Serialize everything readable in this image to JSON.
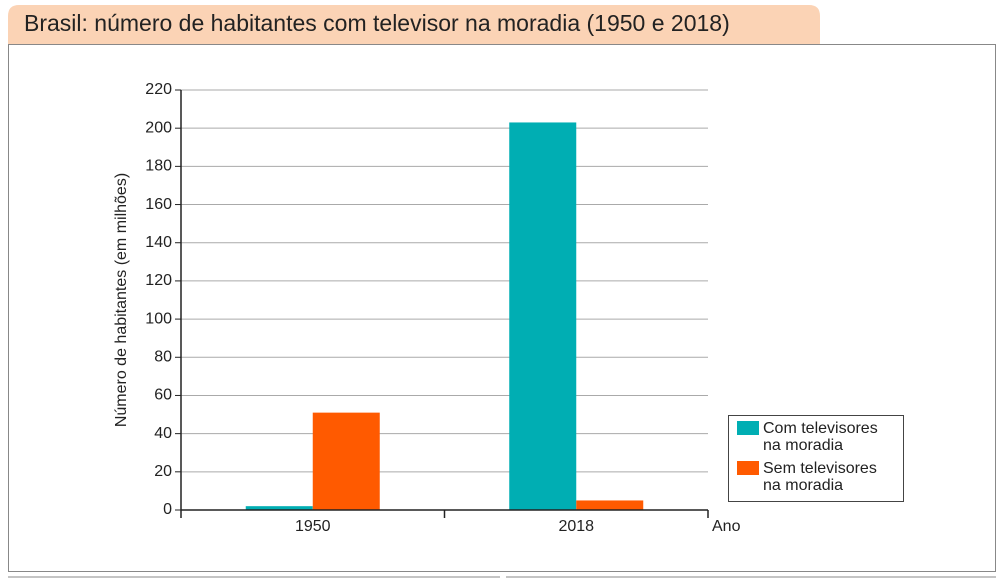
{
  "chart_data": {
    "type": "bar",
    "title": "Brasil: número de habitantes com televisor na moradia (1950 e 2018)",
    "y_label": "Número de habitantes (em milhões)",
    "x_label": "Ano",
    "categories": [
      "1950",
      "2018"
    ],
    "series": [
      {
        "name": "Com televisores na moradia",
        "color": "#00aeb3",
        "values": [
          2,
          203
        ]
      },
      {
        "name": "Sem televisores na moradia",
        "color": "#ff5a00",
        "values": [
          51,
          5
        ]
      }
    ],
    "ylim": [
      0,
      220
    ],
    "yticks": [
      0,
      20,
      40,
      60,
      80,
      100,
      120,
      140,
      160,
      180,
      200,
      220
    ],
    "grid": true
  }
}
